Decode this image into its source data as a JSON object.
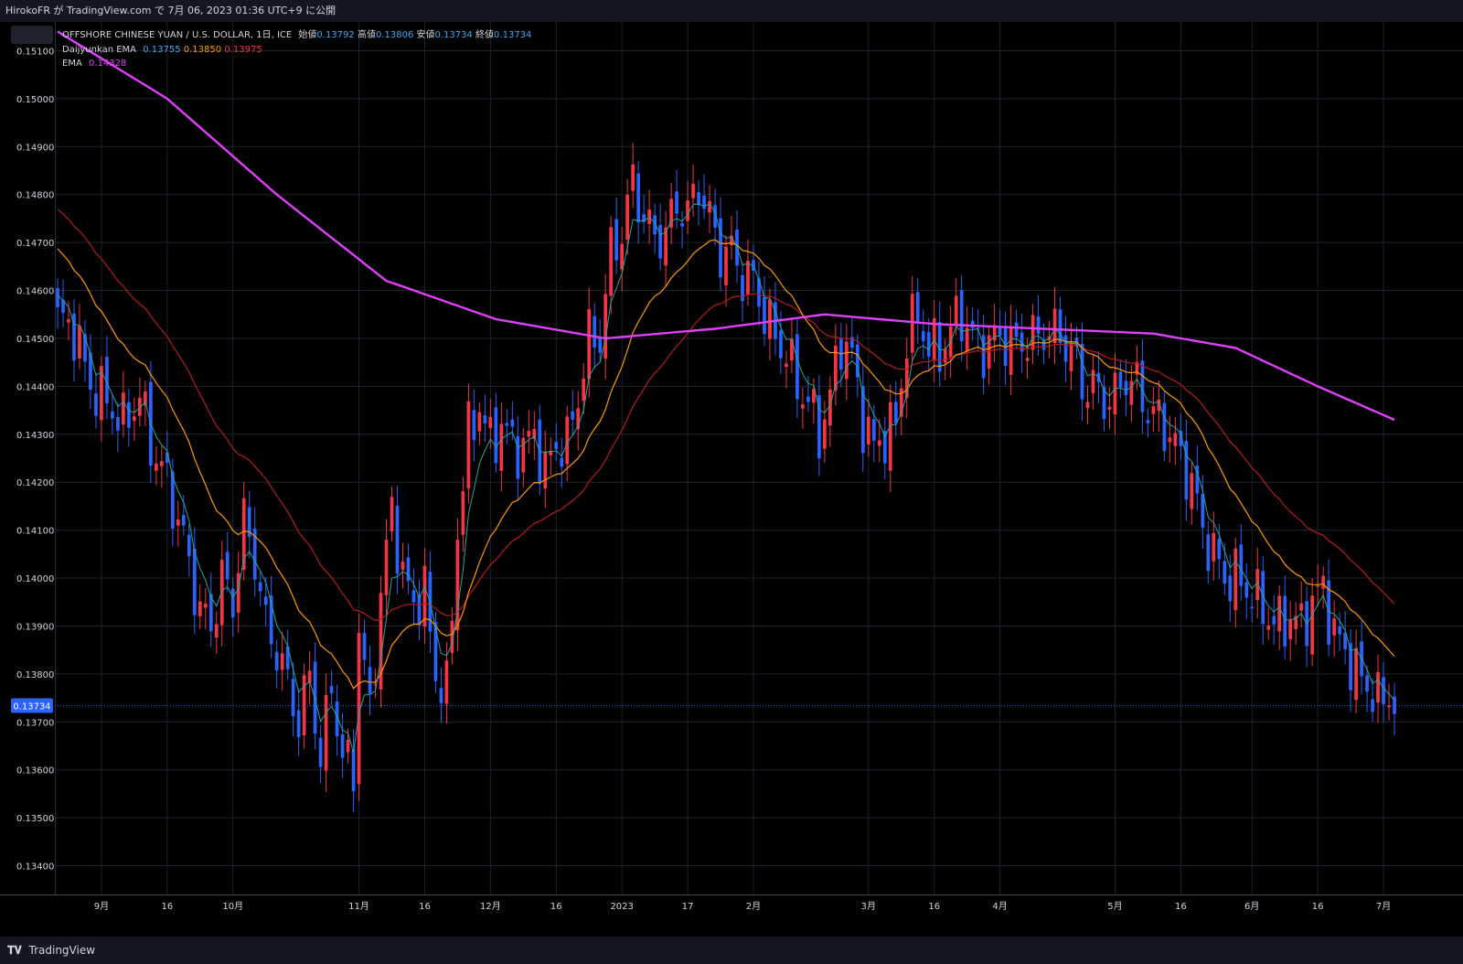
{
  "header": {
    "published_by": "HirokoFR が TradingView.com で 7月 06, 2023 01:36 UTC+9 に公開"
  },
  "legend": {
    "symbol": "OFFSHORE CHINESE YUAN / U.S. DOLLAR, 1日, ICE",
    "open_label": "始値",
    "open": "0.13792",
    "high_label": "高値",
    "high": "0.13806",
    "low_label": "安値",
    "low": "0.13734",
    "close_label": "終値",
    "close": "0.13734",
    "ema3_name": "Daijyunkan EMA",
    "ema3_v1": "0.13755",
    "ema3_v2": "0.13850",
    "ema3_v3": "0.13975",
    "ema_name": "EMA",
    "ema_v": "0.14328"
  },
  "footer": {
    "brand": "TradingView",
    "logo": "tv-logo-icon"
  },
  "colors": {
    "background": "#000000",
    "grid": "#1e222d",
    "up": "#f23645",
    "down": "#2962ff",
    "ema_fast": "#26a69a",
    "ema_mid": "#ff9800",
    "ema_slow": "#b71c1c",
    "ema_long": "#e040fb",
    "last_price_tag": "#2962ff"
  },
  "chart_data": {
    "type": "candlestick",
    "title": "OFFSHORE CHINESE YUAN / U.S. DOLLAR, 1日, ICE",
    "ylim": [
      0.1334,
      0.1516
    ],
    "y_ticks": [
      "0.15100",
      "0.15000",
      "0.14900",
      "0.14800",
      "0.14700",
      "0.14600",
      "0.14500",
      "0.14400",
      "0.14300",
      "0.14200",
      "0.14100",
      "0.14000",
      "0.13900",
      "0.13800",
      "0.13700",
      "0.13600",
      "0.13500",
      "0.13400"
    ],
    "x_ticks": [
      {
        "label": "9月",
        "i": 8
      },
      {
        "label": "16",
        "i": 20
      },
      {
        "label": "10月",
        "i": 32
      },
      {
        "label": "11月",
        "i": 55
      },
      {
        "label": "16",
        "i": 67
      },
      {
        "label": "12月",
        "i": 79
      },
      {
        "label": "16",
        "i": 91
      },
      {
        "label": "2023",
        "i": 103
      },
      {
        "label": "17",
        "i": 115
      },
      {
        "label": "2月",
        "i": 127
      },
      {
        "label": "3月",
        "i": 148
      },
      {
        "label": "16",
        "i": 160
      },
      {
        "label": "4月",
        "i": 172
      },
      {
        "label": "5月",
        "i": 193
      },
      {
        "label": "16",
        "i": 205
      },
      {
        "label": "6月",
        "i": 218
      },
      {
        "label": "16",
        "i": 230
      },
      {
        "label": "7月",
        "i": 242
      }
    ],
    "last_price": "0.13734",
    "n_bars": 245,
    "anchors": [
      [
        0,
        0.1454
      ],
      [
        3,
        0.1452
      ],
      [
        6,
        0.144
      ],
      [
        9,
        0.1437
      ],
      [
        12,
        0.1432
      ],
      [
        15,
        0.1438
      ],
      [
        17,
        0.1428
      ],
      [
        20,
        0.142
      ],
      [
        23,
        0.1408
      ],
      [
        26,
        0.1393
      ],
      [
        28,
        0.139
      ],
      [
        30,
        0.14
      ],
      [
        32,
        0.1395
      ],
      [
        34,
        0.1412
      ],
      [
        36,
        0.1404
      ],
      [
        38,
        0.139
      ],
      [
        40,
        0.1385
      ],
      [
        42,
        0.1378
      ],
      [
        44,
        0.137
      ],
      [
        46,
        0.138
      ],
      [
        48,
        0.1362
      ],
      [
        50,
        0.1378
      ],
      [
        52,
        0.1362
      ],
      [
        54,
        0.136
      ],
      [
        55,
        0.139
      ],
      [
        57,
        0.1372
      ],
      [
        59,
        0.1396
      ],
      [
        61,
        0.1415
      ],
      [
        63,
        0.14
      ],
      [
        65,
        0.1395
      ],
      [
        67,
        0.1397
      ],
      [
        69,
        0.138
      ],
      [
        71,
        0.1376
      ],
      [
        73,
        0.141
      ],
      [
        75,
        0.143
      ],
      [
        77,
        0.1436
      ],
      [
        79,
        0.1428
      ],
      [
        81,
        0.1432
      ],
      [
        83,
        0.1428
      ],
      [
        85,
        0.1427
      ],
      [
        87,
        0.143
      ],
      [
        89,
        0.1422
      ],
      [
        91,
        0.1428
      ],
      [
        93,
        0.1428
      ],
      [
        95,
        0.1438
      ],
      [
        97,
        0.145
      ],
      [
        99,
        0.145
      ],
      [
        101,
        0.1468
      ],
      [
        103,
        0.1472
      ],
      [
        105,
        0.1483
      ],
      [
        107,
        0.1475
      ],
      [
        109,
        0.1471
      ],
      [
        111,
        0.1472
      ],
      [
        113,
        0.1478
      ],
      [
        115,
        0.1476
      ],
      [
        117,
        0.1482
      ],
      [
        119,
        0.1475
      ],
      [
        121,
        0.1468
      ],
      [
        123,
        0.1468
      ],
      [
        125,
        0.1463
      ],
      [
        127,
        0.1462
      ],
      [
        129,
        0.1455
      ],
      [
        131,
        0.145
      ],
      [
        133,
        0.1447
      ],
      [
        135,
        0.144
      ],
      [
        137,
        0.1437
      ],
      [
        139,
        0.143
      ],
      [
        141,
        0.1438
      ],
      [
        143,
        0.145
      ],
      [
        145,
        0.1446
      ],
      [
        147,
        0.1433
      ],
      [
        149,
        0.1427
      ],
      [
        151,
        0.143
      ],
      [
        153,
        0.1432
      ],
      [
        155,
        0.145
      ],
      [
        157,
        0.1455
      ],
      [
        159,
        0.1448
      ],
      [
        161,
        0.1447
      ],
      [
        163,
        0.1452
      ],
      [
        165,
        0.1455
      ],
      [
        167,
        0.145
      ],
      [
        169,
        0.1448
      ],
      [
        171,
        0.145
      ],
      [
        173,
        0.145
      ],
      [
        175,
        0.1448
      ],
      [
        177,
        0.145
      ],
      [
        179,
        0.145
      ],
      [
        181,
        0.1452
      ],
      [
        183,
        0.145
      ],
      [
        185,
        0.1448
      ],
      [
        187,
        0.144
      ],
      [
        189,
        0.144
      ],
      [
        191,
        0.1437
      ],
      [
        193,
        0.1438
      ],
      [
        195,
        0.1442
      ],
      [
        197,
        0.144
      ],
      [
        199,
        0.1435
      ],
      [
        201,
        0.1433
      ],
      [
        203,
        0.143
      ],
      [
        205,
        0.1425
      ],
      [
        207,
        0.142
      ],
      [
        209,
        0.141
      ],
      [
        211,
        0.1405
      ],
      [
        213,
        0.14
      ],
      [
        215,
        0.14
      ],
      [
        217,
        0.1398
      ],
      [
        219,
        0.1395
      ],
      [
        221,
        0.1392
      ],
      [
        223,
        0.139
      ],
      [
        225,
        0.1392
      ],
      [
        227,
        0.139
      ],
      [
        229,
        0.1395
      ],
      [
        231,
        0.1398
      ],
      [
        233,
        0.1388
      ],
      [
        235,
        0.1385
      ],
      [
        237,
        0.138
      ],
      [
        239,
        0.1378
      ],
      [
        241,
        0.1374
      ],
      [
        243,
        0.1376
      ],
      [
        244,
        0.1373
      ]
    ]
  }
}
